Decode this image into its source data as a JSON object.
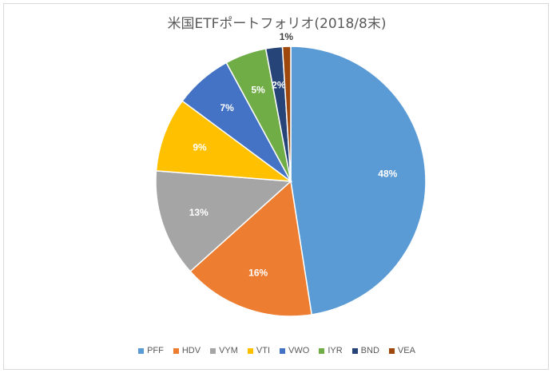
{
  "chart_data": {
    "type": "pie",
    "title": "米国ETFポートフォリオ(2018/8末)",
    "legend_position": "bottom",
    "slices": [
      {
        "name": "PFF",
        "value": 48,
        "label": "48%",
        "color": "#5b9bd5"
      },
      {
        "name": "HDV",
        "value": 16,
        "label": "16%",
        "color": "#ed7d31"
      },
      {
        "name": "VYM",
        "value": 13,
        "label": "13%",
        "color": "#a5a5a5"
      },
      {
        "name": "VTI",
        "value": 9,
        "label": "9%",
        "color": "#ffc000"
      },
      {
        "name": "VWO",
        "value": 7,
        "label": "7%",
        "color": "#4472c4"
      },
      {
        "name": "IYR",
        "value": 5,
        "label": "5%",
        "color": "#70ad47"
      },
      {
        "name": "BND",
        "value": 2,
        "label": "2%",
        "color": "#264478"
      },
      {
        "name": "VEA",
        "value": 1,
        "label": "1%",
        "color": "#9e480e"
      }
    ]
  }
}
